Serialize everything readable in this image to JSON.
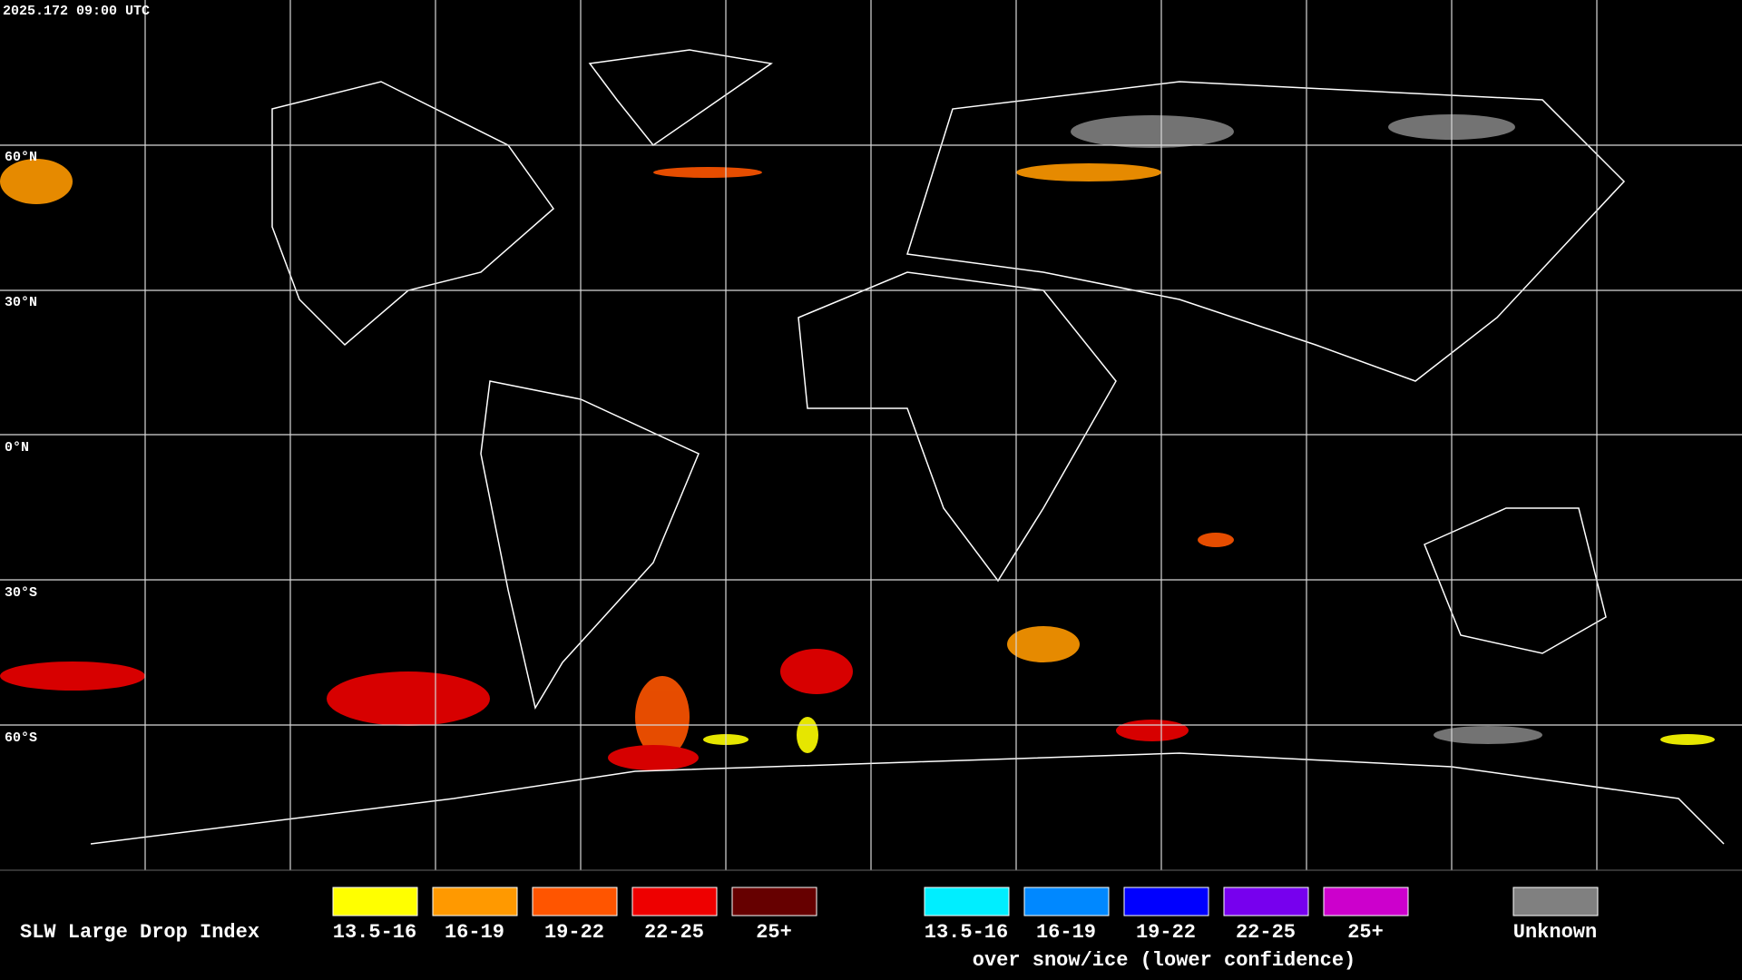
{
  "timestamp": "2025.172 09:00 UTC",
  "lat_labels": [
    "60°N",
    "30°N",
    "0°N",
    "30°S",
    "60°S"
  ],
  "legend": {
    "title": "SLW Large Drop Index",
    "primary": [
      {
        "label": "13.5-16",
        "color": "#ffff00"
      },
      {
        "label": "16-19",
        "color": "#ff9900"
      },
      {
        "label": "19-22",
        "color": "#ff5500"
      },
      {
        "label": "22-25",
        "color": "#ee0000"
      },
      {
        "label": "25+",
        "color": "#660000"
      }
    ],
    "snow_ice": [
      {
        "label": "13.5-16",
        "color": "#00eeff"
      },
      {
        "label": "16-19",
        "color": "#0088ff"
      },
      {
        "label": "19-22",
        "color": "#0000ff"
      },
      {
        "label": "22-25",
        "color": "#7700ee"
      },
      {
        "label": "25+",
        "color": "#cc00cc"
      }
    ],
    "snow_ice_caption": "over snow/ice (lower confidence)",
    "unknown": {
      "label": "Unknown",
      "color": "#808080"
    }
  }
}
